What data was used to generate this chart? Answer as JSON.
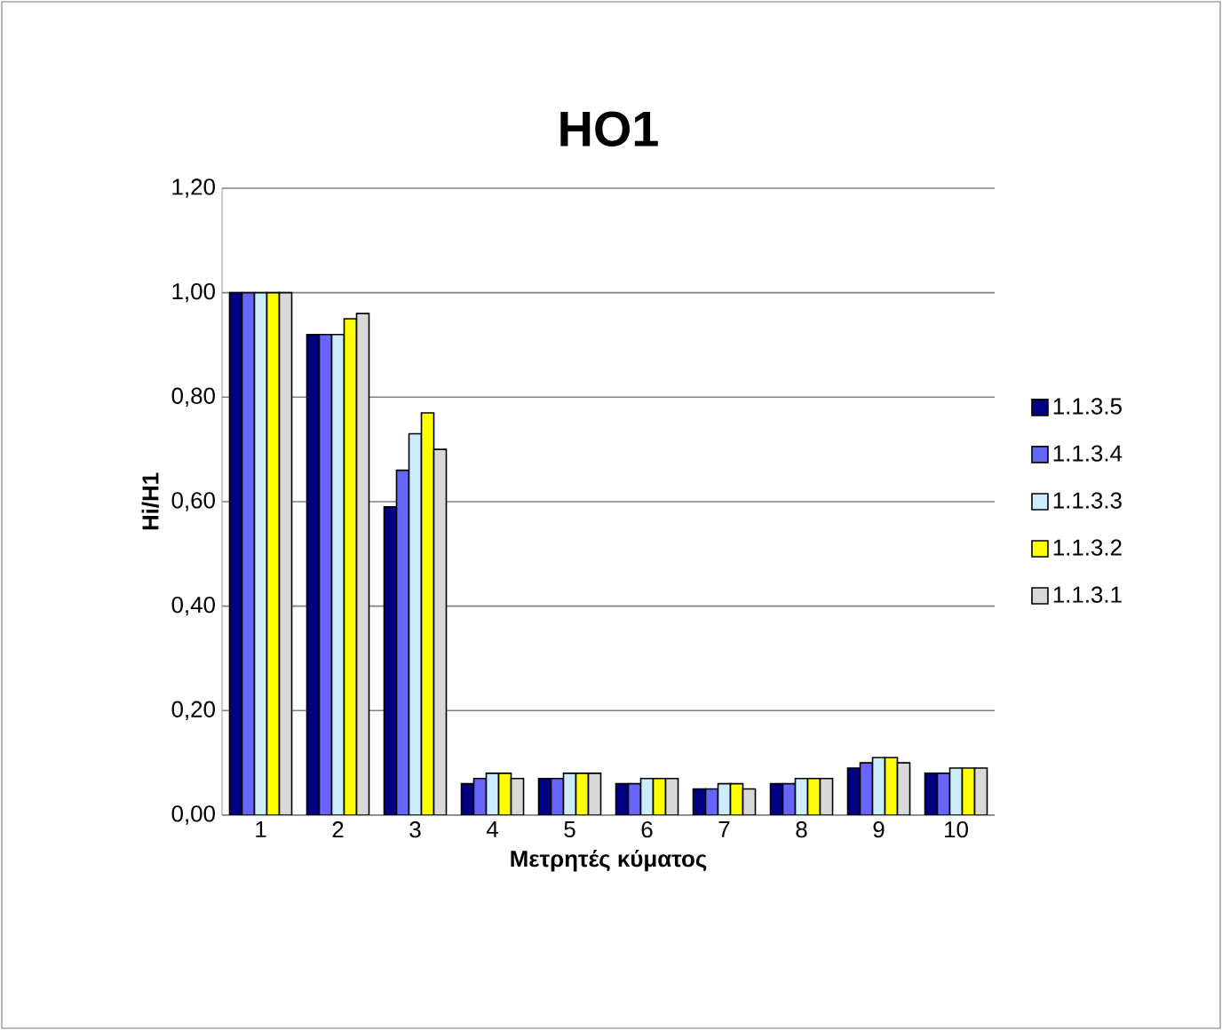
{
  "chart_data": {
    "type": "bar",
    "title": "HO1",
    "xlabel": "Μετρητές κύματος",
    "ylabel": "Hi/H1",
    "categories": [
      "1",
      "2",
      "3",
      "4",
      "5",
      "6",
      "7",
      "8",
      "9",
      "10"
    ],
    "series": [
      {
        "name": "1.1.3.5",
        "color": "#000080",
        "values": [
          1.0,
          0.92,
          0.59,
          0.06,
          0.07,
          0.06,
          0.05,
          0.06,
          0.09,
          0.08
        ]
      },
      {
        "name": "1.1.3.4",
        "color": "#6666ff",
        "values": [
          1.0,
          0.92,
          0.66,
          0.07,
          0.07,
          0.06,
          0.05,
          0.06,
          0.1,
          0.08
        ]
      },
      {
        "name": "1.1.3.3",
        "color": "#ccecff",
        "values": [
          1.0,
          0.92,
          0.73,
          0.08,
          0.08,
          0.07,
          0.06,
          0.07,
          0.11,
          0.09
        ]
      },
      {
        "name": "1.1.3.2",
        "color": "#ffff00",
        "values": [
          1.0,
          0.95,
          0.77,
          0.08,
          0.08,
          0.07,
          0.06,
          0.07,
          0.11,
          0.09
        ]
      },
      {
        "name": "1.1.3.1",
        "color": "#d9d9d9",
        "values": [
          1.0,
          0.96,
          0.7,
          0.07,
          0.08,
          0.07,
          0.05,
          0.07,
          0.1,
          0.09
        ]
      }
    ],
    "ylim": [
      0,
      1.2
    ],
    "yticks": [
      {
        "value": 0,
        "label": "0,00"
      },
      {
        "value": 0.2,
        "label": "0,20"
      },
      {
        "value": 0.4,
        "label": "0,40"
      },
      {
        "value": 0.6,
        "label": "0,60"
      },
      {
        "value": 0.8,
        "label": "0,80"
      },
      {
        "value": 1.0,
        "label": "1,00"
      },
      {
        "value": 1.2,
        "label": "1,20"
      }
    ],
    "grid": "y",
    "legend": "right"
  }
}
